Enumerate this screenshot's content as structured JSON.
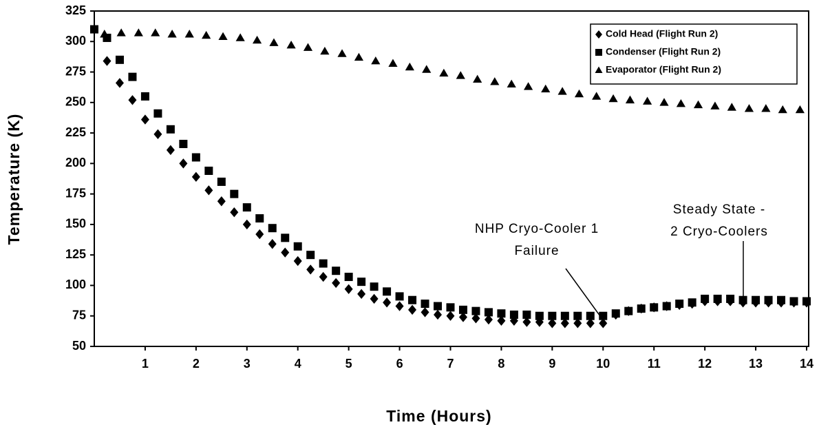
{
  "chart_data": {
    "type": "scatter",
    "x_label": "Time (Hours)",
    "y_label": "Temperature (K)",
    "xlim": [
      0,
      14
    ],
    "xticks": [
      1,
      2,
      3,
      4,
      5,
      6,
      7,
      8,
      9,
      10,
      11,
      12,
      13,
      14
    ],
    "ylim": [
      50,
      325
    ],
    "yticks": [
      50,
      75,
      100,
      125,
      150,
      175,
      200,
      225,
      250,
      275,
      300,
      325
    ],
    "grid": false,
    "legend": "upper right",
    "annotations": [
      {
        "lines": [
          "NHP Cryo-Cooler 1",
          "Failure"
        ]
      },
      {
        "lines": [
          "Steady State -",
          "2 Cryo-Coolers"
        ]
      }
    ],
    "series": [
      {
        "name": "Cold Head (Flight Run 2)",
        "color": "#000000",
        "marker": "diamond",
        "x": [
          0.25,
          0.5,
          0.75,
          1,
          1.25,
          1.5,
          1.75,
          2,
          2.25,
          2.5,
          2.75,
          3,
          3.25,
          3.5,
          3.75,
          4,
          4.25,
          4.5,
          4.75,
          5,
          5.25,
          5.5,
          5.75,
          6,
          6.25,
          6.5,
          6.75,
          7,
          7.25,
          7.5,
          7.75,
          8,
          8.25,
          8.5,
          8.75,
          9,
          9.25,
          9.5,
          9.75,
          10,
          10.25,
          10.5,
          10.75,
          11,
          11.25,
          11.5,
          11.75,
          12,
          12.25,
          12.5,
          12.75,
          13,
          13.25,
          13.5,
          13.75,
          14
        ],
        "values": [
          284,
          266,
          252,
          236,
          224,
          211,
          200,
          189,
          178,
          169,
          160,
          150,
          142,
          134,
          127,
          120,
          113,
          107,
          102,
          97,
          93,
          89,
          86,
          83,
          80,
          78,
          76,
          75,
          74,
          73,
          72,
          71,
          71,
          70,
          70,
          69,
          69,
          69,
          69,
          69,
          76,
          79,
          81,
          82,
          83,
          84,
          85,
          87,
          87,
          87,
          86,
          86,
          86,
          86,
          86,
          86
        ]
      },
      {
        "name": "Condenser (Flight Run 2)",
        "color": "#000000",
        "marker": "square",
        "x": [
          0,
          0.25,
          0.5,
          0.75,
          1,
          1.25,
          1.5,
          1.75,
          2,
          2.25,
          2.5,
          2.75,
          3,
          3.25,
          3.5,
          3.75,
          4,
          4.25,
          4.5,
          4.75,
          5,
          5.25,
          5.5,
          5.75,
          6,
          6.25,
          6.5,
          6.75,
          7,
          7.25,
          7.5,
          7.75,
          8,
          8.25,
          8.5,
          8.75,
          9,
          9.25,
          9.5,
          9.75,
          10,
          10.25,
          10.5,
          10.75,
          11,
          11.25,
          11.5,
          11.75,
          12,
          12.25,
          12.5,
          12.75,
          13,
          13.25,
          13.5,
          13.75,
          14
        ],
        "values": [
          310,
          303,
          285,
          271,
          255,
          241,
          228,
          216,
          205,
          194,
          185,
          175,
          164,
          155,
          147,
          139,
          132,
          125,
          118,
          112,
          107,
          103,
          99,
          95,
          91,
          88,
          85,
          83,
          82,
          80,
          79,
          78,
          77,
          76,
          76,
          75,
          75,
          75,
          75,
          75,
          75,
          77,
          79,
          81,
          82,
          83,
          85,
          86,
          89,
          89,
          89,
          88,
          88,
          88,
          88,
          87,
          87
        ]
      },
      {
        "name": "Evaporator (Flight Run 2)",
        "color": "#000000",
        "marker": "triangle",
        "x": [
          0.2,
          0.53,
          0.87,
          1.2,
          1.53,
          1.87,
          2.2,
          2.53,
          2.87,
          3.2,
          3.53,
          3.87,
          4.2,
          4.53,
          4.87,
          5.2,
          5.53,
          5.87,
          6.2,
          6.53,
          6.87,
          7.2,
          7.53,
          7.87,
          8.2,
          8.53,
          8.87,
          9.2,
          9.53,
          9.87,
          10.2,
          10.53,
          10.87,
          11.2,
          11.53,
          11.87,
          12.2,
          12.53,
          12.87,
          13.2,
          13.53,
          13.87
        ],
        "values": [
          306,
          307,
          307,
          307,
          306,
          306,
          305,
          304,
          303,
          301,
          299,
          297,
          295,
          292,
          290,
          287,
          284,
          282,
          279,
          277,
          274,
          272,
          269,
          267,
          265,
          263,
          261,
          259,
          257,
          255,
          253,
          252,
          251,
          250,
          249,
          248,
          247,
          246,
          245,
          245,
          244,
          244
        ]
      }
    ]
  }
}
